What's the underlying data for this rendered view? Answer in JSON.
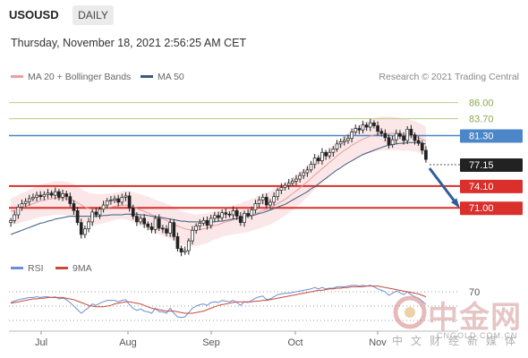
{
  "header": {
    "symbol": "USOUSD",
    "timeframe_label": "DAILY",
    "datetime": "Thursday, November 18, 2021 2:56:25 AM CET"
  },
  "legend": {
    "bollinger_label": "MA 20 + Bollinger Bands",
    "ma50_label": "MA 50",
    "bollinger_color": "#e8a0a0",
    "ma50_color": "#3a5a80",
    "credit": "Research © 2021 Trading Central"
  },
  "rsi_legend": {
    "rsi_label": "RSI",
    "ma_label": "9MA",
    "rsi_color": "#6b8fd6",
    "ma_color": "#c84a3a"
  },
  "watermark": {
    "cn_name": "中金网",
    "url": "CNGOLD.COM.CN",
    "subtitle": "中文财经新媒体"
  },
  "chart_data": [
    {
      "type": "candlestick",
      "title": "USOUSD DAILY",
      "ylim": [
        63.5,
        88.5
      ],
      "x_ticks": [
        "Jul",
        "Aug",
        "Sep",
        "Oct",
        "Nov"
      ],
      "price_levels": [
        {
          "label": "86.00",
          "value": 86.0,
          "style": "thin",
          "color": "#b4cf84"
        },
        {
          "label": "83.70",
          "value": 83.7,
          "style": "thin",
          "color": "#b4cf84"
        },
        {
          "label": "81.30",
          "value": 81.3,
          "style": "resistance",
          "color": "#4b86c8"
        },
        {
          "label": "77.15",
          "value": 77.15,
          "style": "current",
          "color": "#222222"
        },
        {
          "label": "74.10",
          "value": 74.1,
          "style": "support",
          "color": "#d9302c"
        },
        {
          "label": "71.00",
          "value": 71.0,
          "style": "support",
          "color": "#d9302c"
        }
      ],
      "forecast_arrow": {
        "from": 77.15,
        "to": 71.0,
        "color": "#2f5f9a"
      },
      "series": [
        {
          "name": "USOUSD",
          "values": [
            69.2,
            70.0,
            71.1,
            71.6,
            71.9,
            72.3,
            72.5,
            72.8,
            72.6,
            72.9,
            73.1,
            72.8,
            73.3,
            72.5,
            73.0,
            72.6,
            71.6,
            70.6,
            68.9,
            67.2,
            68.0,
            69.0,
            70.4,
            70.0,
            70.8,
            71.4,
            72.0,
            72.1,
            72.3,
            71.8,
            72.5,
            72.7,
            71.0,
            69.8,
            69.0,
            69.5,
            68.7,
            68.3,
            67.9,
            69.5,
            68.1,
            68.0,
            67.4,
            68.9,
            66.9,
            65.2,
            64.7,
            64.9,
            66.3,
            67.8,
            68.4,
            68.8,
            69.2,
            68.5,
            69.5,
            69.9,
            69.6,
            70.3,
            70.1,
            70.0,
            70.6,
            69.8,
            68.9,
            70.2,
            69.9,
            70.7,
            71.6,
            72.1,
            72.5,
            71.4,
            71.8,
            72.6,
            73.5,
            73.9,
            74.2,
            74.5,
            74.8,
            75.1,
            75.6,
            76.0,
            76.4,
            77.2,
            78.1,
            77.7,
            78.9,
            78.4,
            78.9,
            79.4,
            80.1,
            80.4,
            80.6,
            80.9,
            81.8,
            82.3,
            82.1,
            82.8,
            82.5,
            83.1,
            82.7,
            81.9,
            81.6,
            81.0,
            80.0,
            80.7,
            81.6,
            81.2,
            80.6,
            82.2,
            81.4,
            80.6,
            80.2,
            79.2,
            77.9
          ]
        },
        {
          "name": "MA 20",
          "values": [
            70.5,
            70.6,
            70.8,
            71.0,
            71.2,
            71.4,
            71.6,
            71.8,
            72.0,
            72.1,
            72.2,
            72.3,
            72.4,
            72.4,
            72.4,
            72.3,
            72.2,
            72.0,
            71.7,
            71.4,
            71.1,
            70.9,
            70.8,
            70.8,
            70.8,
            70.9,
            71.0,
            71.1,
            71.2,
            71.3,
            71.4,
            71.4,
            71.3,
            71.1,
            70.9,
            70.7,
            70.5,
            70.3,
            70.0,
            69.8,
            69.6,
            69.4,
            69.2,
            69.0,
            68.7,
            68.4,
            68.2,
            68.0,
            67.9,
            67.8,
            67.8,
            67.9,
            68.0,
            68.1,
            68.3,
            68.5,
            68.6,
            68.8,
            69.0,
            69.1,
            69.3,
            69.4,
            69.5,
            69.7,
            69.8,
            70.0,
            70.2,
            70.4,
            70.6,
            70.8,
            71.0,
            71.3,
            71.6,
            71.9,
            72.2,
            72.6,
            73.0,
            73.4,
            73.8,
            74.3,
            74.7,
            75.2,
            75.7,
            76.1,
            76.6,
            77.0,
            77.5,
            77.9,
            78.4,
            78.8,
            79.2,
            79.5,
            79.9,
            80.2,
            80.5,
            80.8,
            81.0,
            81.2,
            81.4,
            81.5,
            81.6,
            81.6,
            81.6,
            81.6,
            81.6,
            81.5,
            81.4,
            81.4,
            81.3,
            81.2,
            81.0,
            80.8,
            80.5
          ]
        },
        {
          "name": "MA 50",
          "values": [
            67.2,
            67.4,
            67.6,
            67.8,
            68.0,
            68.2,
            68.4,
            68.6,
            68.8,
            68.9,
            69.1,
            69.2,
            69.4,
            69.5,
            69.6,
            69.7,
            69.8,
            69.8,
            69.8,
            69.8,
            69.8,
            69.8,
            69.8,
            69.8,
            69.8,
            69.9,
            69.9,
            70.0,
            70.0,
            70.0,
            70.0,
            70.1,
            70.1,
            70.1,
            70.1,
            70.0,
            70.0,
            69.9,
            69.8,
            69.7,
            69.7,
            69.6,
            69.5,
            69.4,
            69.3,
            69.2,
            69.1,
            69.1,
            69.0,
            69.0,
            69.0,
            69.0,
            69.0,
            69.0,
            69.0,
            69.0,
            69.1,
            69.1,
            69.2,
            69.3,
            69.4,
            69.5,
            69.6,
            69.7,
            69.8,
            69.9,
            70.0,
            70.2,
            70.3,
            70.5,
            70.7,
            70.9,
            71.1,
            71.3,
            71.5,
            71.8,
            72.1,
            72.4,
            72.7,
            73.0,
            73.3,
            73.7,
            74.0,
            74.4,
            74.8,
            75.2,
            75.6,
            76.0,
            76.4,
            76.7,
            77.1,
            77.4,
            77.7,
            78.0,
            78.3,
            78.6,
            78.8,
            79.0,
            79.2,
            79.4,
            79.6,
            79.8,
            79.9,
            80.0,
            80.1,
            80.2,
            80.2,
            80.3,
            80.3,
            80.3,
            80.3,
            80.2,
            80.1
          ]
        }
      ]
    },
    {
      "type": "line",
      "title": "RSI",
      "ylim": [
        20,
        80
      ],
      "levels": [
        {
          "label": "70",
          "value": 70
        },
        {
          "value": 50
        },
        {
          "value": 30
        }
      ],
      "series": [
        {
          "name": "RSI",
          "values": [
            55,
            57,
            59,
            60,
            61,
            62,
            62,
            63,
            62,
            63,
            63,
            62,
            63,
            60,
            61,
            59,
            55,
            50,
            45,
            40,
            44,
            48,
            53,
            51,
            54,
            56,
            58,
            58,
            58,
            56,
            58,
            59,
            52,
            47,
            44,
            46,
            43,
            42,
            40,
            47,
            42,
            42,
            40,
            47,
            40,
            35,
            34,
            35,
            41,
            47,
            50,
            52,
            53,
            51,
            55,
            56,
            55,
            58,
            57,
            56,
            58,
            55,
            51,
            56,
            55,
            58,
            61,
            63,
            64,
            59,
            60,
            63,
            66,
            67,
            68,
            68,
            69,
            70,
            71,
            72,
            73,
            74,
            76,
            74,
            76,
            74,
            75,
            75,
            77,
            77,
            77,
            78,
            79,
            79,
            78,
            79,
            78,
            79,
            77,
            74,
            72,
            70,
            65,
            68,
            71,
            69,
            66,
            70,
            66,
            63,
            61,
            57,
            52
          ]
        },
        {
          "name": "9MA",
          "values": [
            54,
            55,
            56,
            57,
            58,
            59,
            60,
            60,
            61,
            61,
            62,
            62,
            62,
            62,
            62,
            61,
            60,
            59,
            57,
            55,
            53,
            51,
            50,
            49,
            49,
            49,
            50,
            51,
            53,
            54,
            55,
            56,
            56,
            55,
            54,
            53,
            51,
            49,
            47,
            46,
            45,
            44,
            43,
            43,
            43,
            42,
            41,
            40,
            40,
            40,
            41,
            42,
            43,
            45,
            47,
            49,
            51,
            52,
            53,
            54,
            55,
            56,
            56,
            56,
            56,
            56,
            57,
            57,
            58,
            58,
            59,
            60,
            61,
            62,
            63,
            64,
            65,
            66,
            67,
            68,
            69,
            70,
            71,
            72,
            72,
            73,
            74,
            74,
            75,
            75,
            76,
            76,
            77,
            77,
            77,
            77,
            78,
            78,
            78,
            78,
            77,
            76,
            75,
            74,
            73,
            72,
            71,
            70,
            69,
            68,
            67,
            65,
            63
          ]
        }
      ]
    }
  ]
}
